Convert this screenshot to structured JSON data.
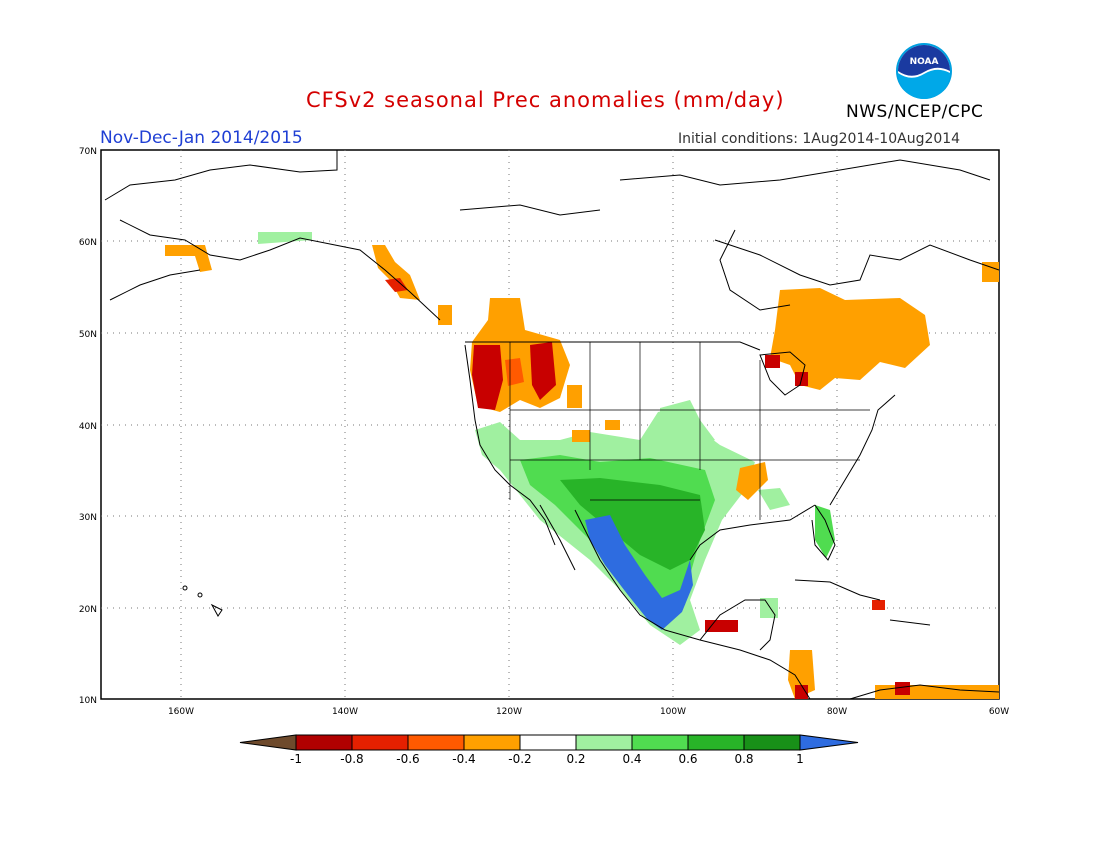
{
  "title": "CFSv2 seasonal Prec anomalies (mm/day)",
  "period": "Nov-Dec-Jan 2014/2015",
  "initial_conditions": "Initial conditions: 1Aug2014-10Aug2014",
  "agency": "NWS/NCEP/CPC",
  "logo_text": "NOAA",
  "lat_labels": [
    "70N",
    "60N",
    "50N",
    "40N",
    "30N",
    "20N",
    "10N"
  ],
  "lon_labels": [
    "160W",
    "140W",
    "120W",
    "100W",
    "80W",
    "60W"
  ],
  "colorbar": {
    "labels": [
      "-1",
      "-0.8",
      "-0.6",
      "-0.4",
      "-0.2",
      "0.2",
      "0.4",
      "0.6",
      "0.8",
      "1"
    ],
    "colors": [
      "#6e4a2c",
      "#b00000",
      "#e52000",
      "#ff5a00",
      "#ffa000",
      "#ffffff",
      "#a0f0a0",
      "#50dc50",
      "#28b428",
      "#189018",
      "#2e6ce0"
    ]
  },
  "colors": {
    "title": "#d40000",
    "period": "#1f3fd4",
    "dry_strong": "#c80000",
    "dry": "#ffa000",
    "wet_light": "#a0f0a0",
    "wet": "#50dc50",
    "wet_strong": "#189018",
    "very_wet": "#2e6ce0"
  }
}
